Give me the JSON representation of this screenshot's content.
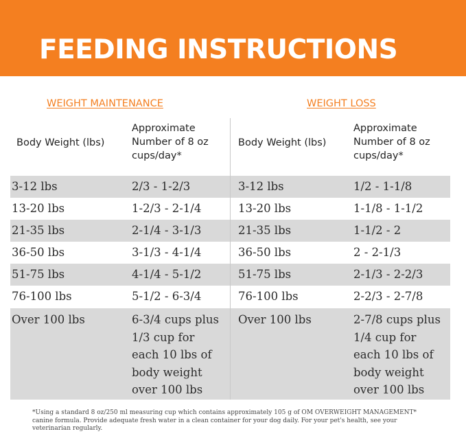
{
  "header": {
    "title": "FEEDING INSTRUCTIONS"
  },
  "sections": {
    "maintenance": {
      "heading": "WEIGHT MAINTENANCE",
      "col_weight": "Body Weight (lbs)",
      "col_cups": [
        "Approximate",
        "Number of 8 oz",
        "cups/day*"
      ]
    },
    "loss": {
      "heading": "WEIGHT LOSS",
      "col_weight": "Body Weight (lbs)",
      "col_cups": [
        "Approximate",
        "Number of 8 oz",
        "cups/day*"
      ]
    }
  },
  "rows": [
    {
      "m_weight": "3-12 lbs",
      "m_cups": "2/3 - 1-2/3",
      "l_weight": "3-12 lbs",
      "l_cups": "1/2 - 1-1/8"
    },
    {
      "m_weight": "13-20 lbs",
      "m_cups": "1-2/3 - 2-1/4",
      "l_weight": "13-20 lbs",
      "l_cups": "1-1/8 - 1-1/2"
    },
    {
      "m_weight": "21-35 lbs",
      "m_cups": "2-1/4 - 3-1/3",
      "l_weight": "21-35 lbs",
      "l_cups": "1-1/2 - 2"
    },
    {
      "m_weight": "36-50 lbs",
      "m_cups": "3-1/3 - 4-1/4",
      "l_weight": "36-50 lbs",
      "l_cups": "2 - 2-1/3"
    },
    {
      "m_weight": "51-75 lbs",
      "m_cups": "4-1/4 - 5-1/2",
      "l_weight": "51-75 lbs",
      "l_cups": "2-1/3 - 2-2/3"
    },
    {
      "m_weight": "76-100 lbs",
      "m_cups": "5-1/2 - 6-3/4",
      "l_weight": "76-100 lbs",
      "l_cups": "2-2/3 - 2-7/8"
    }
  ],
  "last_row": {
    "m_weight": "Over 100 lbs",
    "m_cups": [
      "6-3/4 cups plus",
      "1/3 cup for",
      "each 10 lbs of",
      "body weight",
      "over 100 lbs"
    ],
    "l_weight": "Over 100 lbs",
    "l_cups": [
      "2-7/8 cups plus",
      "1/4 cup for",
      "each 10 lbs of",
      "body weight",
      "over 100 lbs"
    ]
  },
  "footnote": [
    "*Using a standard 8 oz/250 ml measuring cup which contains approximately 105 g of OM OVERWEIGHT MANAGEMENT*",
    "canine formula. Provide adequate fresh water in a clean container for your dog daily. For your pet's health, see your",
    "veterinarian regularly."
  ],
  "colors": {
    "accent": "#f47f20",
    "row_shade": "#d9d9d9"
  }
}
